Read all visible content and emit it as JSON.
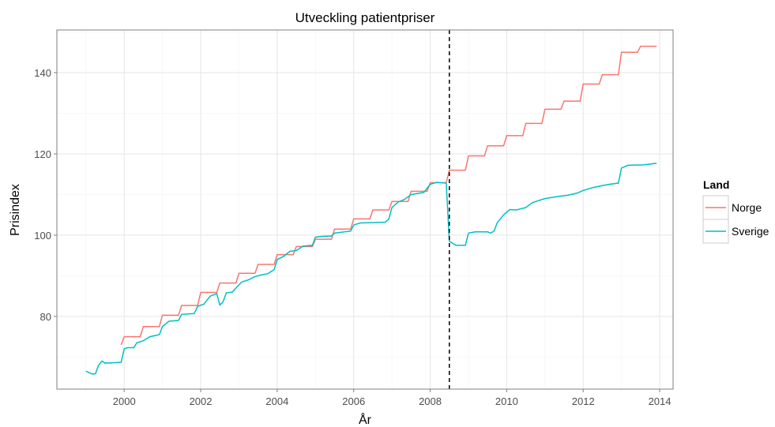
{
  "chart_data": {
    "type": "line",
    "title": "Utveckling patientpriser",
    "x_label": "År",
    "y_label": "Prisindex",
    "legend_title": "Land",
    "legend_position": "right",
    "grid": true,
    "xlim": [
      1998.24,
      2014.35
    ],
    "ylim": [
      62.1,
      150.5
    ],
    "xticks": [
      2000,
      2002,
      2004,
      2006,
      2008,
      2010,
      2012,
      2014
    ],
    "yticks": [
      80,
      100,
      120,
      140
    ],
    "x_minor_ticks": [
      1999,
      2001,
      2003,
      2005,
      2007,
      2009,
      2011,
      2013
    ],
    "y_minor_ticks": [
      70,
      90,
      110,
      130,
      150
    ],
    "vline": 2008.5,
    "series": [
      {
        "name": "Norge",
        "color": "#f8766d",
        "x": [
          1999.92,
          2000.0,
          2000.42,
          2000.5,
          2000.92,
          2001.0,
          2001.42,
          2001.5,
          2001.92,
          2002.0,
          2002.42,
          2002.5,
          2002.92,
          2003.0,
          2003.42,
          2003.5,
          2003.92,
          2004.0,
          2004.42,
          2004.5,
          2004.92,
          2005.0,
          2005.42,
          2005.5,
          2005.92,
          2006.0,
          2006.42,
          2006.5,
          2006.92,
          2007.0,
          2007.42,
          2007.5,
          2007.92,
          2008.0,
          2008.42,
          2008.5,
          2008.92,
          2009.0,
          2009.42,
          2009.5,
          2009.92,
          2010.0,
          2010.42,
          2010.5,
          2010.92,
          2011.0,
          2011.42,
          2011.5,
          2011.92,
          2012.0,
          2012.42,
          2012.5,
          2012.92,
          2013.0,
          2013.42,
          2013.5,
          2013.92
        ],
        "values": [
          73,
          75,
          75,
          77.5,
          77.5,
          80.3,
          80.3,
          82.7,
          82.7,
          85.9,
          85.9,
          88.2,
          88.2,
          90.6,
          90.6,
          92.8,
          92.8,
          95.2,
          95.2,
          97.2,
          97.2,
          99.0,
          99.0,
          101.5,
          101.5,
          104.0,
          104.0,
          106.2,
          106.2,
          108.3,
          108.3,
          110.8,
          110.8,
          112.9,
          112.9,
          116.0,
          116.0,
          119.5,
          119.5,
          122.0,
          122.0,
          124.5,
          124.5,
          127.5,
          127.5,
          131.0,
          131.0,
          133.0,
          133.0,
          137.2,
          137.2,
          139.5,
          139.5,
          145.0,
          145.0,
          146.5,
          146.5
        ]
      },
      {
        "name": "Sverige",
        "color": "#00bfc4",
        "x": [
          1999.0,
          1999.17,
          1999.25,
          1999.33,
          1999.42,
          1999.5,
          1999.75,
          1999.92,
          2000.0,
          2000.08,
          2000.25,
          2000.33,
          2000.5,
          2000.67,
          2000.92,
          2001.0,
          2001.17,
          2001.42,
          2001.5,
          2001.83,
          2001.92,
          2002.08,
          2002.25,
          2002.42,
          2002.5,
          2002.58,
          2002.67,
          2002.83,
          2002.92,
          2003.08,
          2003.25,
          2003.42,
          2003.58,
          2003.75,
          2003.92,
          2004.0,
          2004.17,
          2004.33,
          2004.5,
          2004.67,
          2004.92,
          2005.0,
          2005.17,
          2005.42,
          2005.5,
          2005.75,
          2005.92,
          2006.0,
          2006.17,
          2006.83,
          2006.92,
          2007.0,
          2007.17,
          2007.33,
          2007.5,
          2007.83,
          2008.0,
          2008.17,
          2008.42,
          2008.5,
          2008.67,
          2008.92,
          2009.0,
          2009.17,
          2009.5,
          2009.58,
          2009.67,
          2009.75,
          2009.92,
          2010.08,
          2010.25,
          2010.5,
          2010.67,
          2010.83,
          2011.0,
          2011.33,
          2011.58,
          2011.83,
          2012.0,
          2012.25,
          2012.5,
          2012.67,
          2012.92,
          2013.0,
          2013.17,
          2013.58,
          2013.75,
          2013.92
        ],
        "values": [
          66.5,
          65.8,
          65.9,
          68,
          69,
          68.5,
          68.6,
          68.7,
          72,
          72.3,
          72.3,
          73.5,
          74,
          75,
          75.5,
          77.5,
          78.8,
          79,
          80.5,
          80.7,
          82.5,
          83,
          85,
          85.6,
          82.8,
          83.5,
          85.8,
          86,
          87,
          88.5,
          89,
          89.8,
          90.2,
          90.5,
          91.5,
          94,
          94.8,
          96,
          96.2,
          97.3,
          97.5,
          99.5,
          99.7,
          99.8,
          100.5,
          100.8,
          101,
          102.5,
          103,
          103.2,
          104,
          106.8,
          108.2,
          108.8,
          110,
          110.5,
          112.5,
          113,
          112.8,
          98.5,
          97.5,
          97.5,
          100.5,
          100.8,
          100.8,
          100.5,
          101,
          103,
          105,
          106.3,
          106.2,
          106.8,
          108,
          108.5,
          109,
          109.5,
          109.8,
          110.3,
          111,
          111.7,
          112.2,
          112.5,
          112.8,
          116.5,
          117.2,
          117.3,
          117.5,
          117.7
        ]
      }
    ]
  }
}
